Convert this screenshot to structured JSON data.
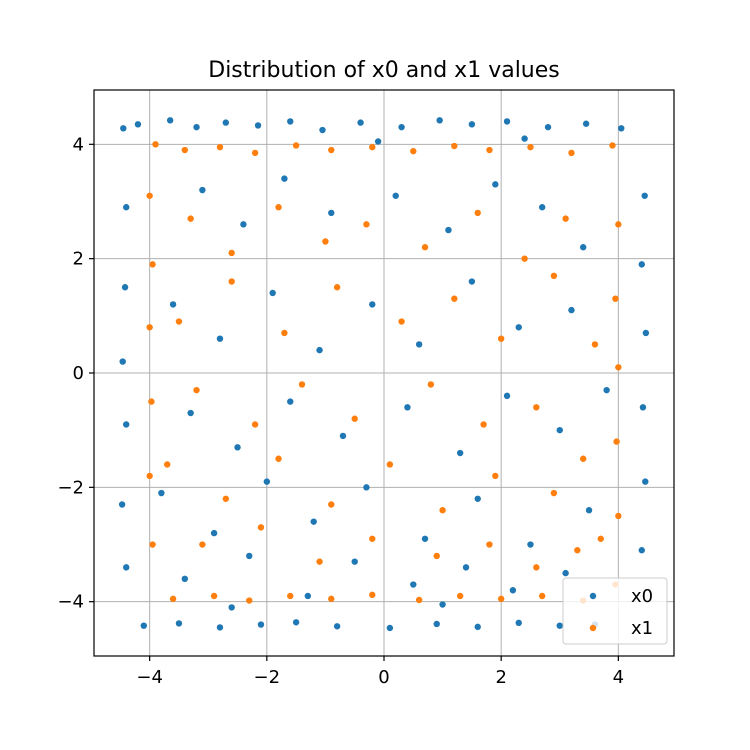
{
  "chart_data": {
    "type": "scatter",
    "title": "Distribution of x0 and x1 values",
    "xlabel": "",
    "ylabel": "",
    "xlim": [
      -4.95,
      4.95
    ],
    "ylim": [
      -4.95,
      4.95
    ],
    "xticks": [
      -4,
      -2,
      0,
      2,
      4
    ],
    "yticks": [
      -4,
      -2,
      0,
      2,
      4
    ],
    "xtick_labels": [
      "−4",
      "−2",
      "0",
      "2",
      "4"
    ],
    "ytick_labels": [
      "−4",
      "−2",
      "0",
      "2",
      "4"
    ],
    "grid": true,
    "legend_position": "bottom-right",
    "point_distribution": "approximately uniform over the square [-4.5, 4.5] x [-4.5, 4.5]",
    "series": [
      {
        "name": "x0",
        "color": "#1f77b4",
        "points": [
          [
            -4.45,
            4.28
          ],
          [
            -4.2,
            4.35
          ],
          [
            -3.65,
            4.42
          ],
          [
            -3.2,
            4.3
          ],
          [
            -2.7,
            4.38
          ],
          [
            -2.15,
            4.33
          ],
          [
            -1.6,
            4.4
          ],
          [
            -1.05,
            4.25
          ],
          [
            -0.4,
            4.38
          ],
          [
            0.3,
            4.3
          ],
          [
            0.95,
            4.42
          ],
          [
            1.5,
            4.35
          ],
          [
            2.1,
            4.4
          ],
          [
            2.8,
            4.3
          ],
          [
            3.45,
            4.36
          ],
          [
            4.05,
            4.28
          ],
          [
            -4.4,
            2.9
          ],
          [
            -4.42,
            1.5
          ],
          [
            -4.46,
            0.2
          ],
          [
            -4.4,
            -0.9
          ],
          [
            -4.47,
            -2.3
          ],
          [
            -4.4,
            -3.4
          ],
          [
            4.45,
            3.1
          ],
          [
            4.4,
            1.9
          ],
          [
            4.47,
            0.7
          ],
          [
            4.42,
            -0.6
          ],
          [
            4.46,
            -1.9
          ],
          [
            4.4,
            -3.1
          ],
          [
            -4.1,
            -4.42
          ],
          [
            -3.5,
            -4.38
          ],
          [
            -2.8,
            -4.45
          ],
          [
            -2.1,
            -4.4
          ],
          [
            -1.5,
            -4.36
          ],
          [
            -0.8,
            -4.43
          ],
          [
            0.1,
            -4.46
          ],
          [
            0.9,
            -4.39
          ],
          [
            1.6,
            -4.44
          ],
          [
            2.3,
            -4.37
          ],
          [
            3.0,
            -4.42
          ],
          [
            3.6,
            -4.4
          ],
          [
            -3.1,
            3.2
          ],
          [
            -2.4,
            2.6
          ],
          [
            -1.7,
            3.4
          ],
          [
            -0.9,
            2.8
          ],
          [
            0.2,
            3.1
          ],
          [
            1.1,
            2.5
          ],
          [
            1.9,
            3.3
          ],
          [
            2.7,
            2.9
          ],
          [
            3.4,
            2.2
          ],
          [
            -3.6,
            1.2
          ],
          [
            -2.8,
            0.6
          ],
          [
            -1.9,
            1.4
          ],
          [
            -1.1,
            0.4
          ],
          [
            -0.2,
            1.2
          ],
          [
            0.6,
            0.5
          ],
          [
            1.5,
            1.6
          ],
          [
            2.3,
            0.8
          ],
          [
            3.2,
            1.1
          ],
          [
            -3.3,
            -0.7
          ],
          [
            -2.5,
            -1.3
          ],
          [
            -1.6,
            -0.5
          ],
          [
            -0.7,
            -1.1
          ],
          [
            0.4,
            -0.6
          ],
          [
            1.3,
            -1.4
          ],
          [
            2.1,
            -0.4
          ],
          [
            3.0,
            -1.0
          ],
          [
            3.8,
            -0.3
          ],
          [
            -3.8,
            -2.1
          ],
          [
            -2.9,
            -2.8
          ],
          [
            -2.0,
            -1.9
          ],
          [
            -1.2,
            -2.6
          ],
          [
            -0.3,
            -2.0
          ],
          [
            0.7,
            -2.9
          ],
          [
            1.6,
            -2.2
          ],
          [
            2.5,
            -3.0
          ],
          [
            3.5,
            -2.4
          ],
          [
            -3.4,
            -3.6
          ],
          [
            -2.3,
            -3.2
          ],
          [
            -1.3,
            -3.9
          ],
          [
            -0.5,
            -3.3
          ],
          [
            0.5,
            -3.7
          ],
          [
            1.4,
            -3.4
          ],
          [
            2.2,
            -3.8
          ],
          [
            3.1,
            -3.5
          ],
          [
            -0.1,
            4.05
          ],
          [
            2.4,
            4.1
          ],
          [
            -2.6,
            -4.1
          ],
          [
            1.0,
            -4.05
          ]
        ]
      },
      {
        "name": "x1",
        "color": "#ff7f0e",
        "points": [
          [
            -3.9,
            4.0
          ],
          [
            -3.4,
            3.9
          ],
          [
            -2.8,
            3.95
          ],
          [
            -2.2,
            3.85
          ],
          [
            -1.5,
            3.98
          ],
          [
            -0.9,
            3.9
          ],
          [
            -0.2,
            3.95
          ],
          [
            0.5,
            3.88
          ],
          [
            1.2,
            3.97
          ],
          [
            1.8,
            3.9
          ],
          [
            2.5,
            3.95
          ],
          [
            3.2,
            3.85
          ],
          [
            3.9,
            3.98
          ],
          [
            -4.0,
            3.1
          ],
          [
            -3.95,
            1.9
          ],
          [
            -4.0,
            0.8
          ],
          [
            -3.97,
            -0.5
          ],
          [
            -4.0,
            -1.8
          ],
          [
            -3.95,
            -3.0
          ],
          [
            4.0,
            2.6
          ],
          [
            3.95,
            1.3
          ],
          [
            4.0,
            0.1
          ],
          [
            3.97,
            -1.2
          ],
          [
            4.0,
            -2.5
          ],
          [
            3.95,
            -3.7
          ],
          [
            -3.6,
            -3.95
          ],
          [
            -2.9,
            -3.9
          ],
          [
            -2.3,
            -3.98
          ],
          [
            -1.6,
            -3.9
          ],
          [
            -0.9,
            -3.95
          ],
          [
            -0.2,
            -3.88
          ],
          [
            0.6,
            -3.97
          ],
          [
            1.3,
            -3.9
          ],
          [
            2.0,
            -3.95
          ],
          [
            2.7,
            -3.9
          ],
          [
            3.4,
            -3.98
          ],
          [
            -3.3,
            2.7
          ],
          [
            -2.6,
            2.1
          ],
          [
            -1.8,
            2.9
          ],
          [
            -1.0,
            2.3
          ],
          [
            -0.3,
            2.6
          ],
          [
            0.7,
            2.2
          ],
          [
            1.6,
            2.8
          ],
          [
            2.4,
            2.0
          ],
          [
            3.1,
            2.7
          ],
          [
            -3.5,
            0.9
          ],
          [
            -2.6,
            1.6
          ],
          [
            -1.7,
            0.7
          ],
          [
            -0.8,
            1.5
          ],
          [
            0.3,
            0.9
          ],
          [
            1.2,
            1.3
          ],
          [
            2.0,
            0.6
          ],
          [
            2.9,
            1.7
          ],
          [
            3.6,
            0.5
          ],
          [
            -3.2,
            -0.3
          ],
          [
            -2.2,
            -0.9
          ],
          [
            -1.4,
            -0.2
          ],
          [
            -0.5,
            -0.8
          ],
          [
            0.8,
            -0.2
          ],
          [
            1.7,
            -0.9
          ],
          [
            2.6,
            -0.6
          ],
          [
            3.4,
            -1.5
          ],
          [
            -3.7,
            -1.6
          ],
          [
            -2.7,
            -2.2
          ],
          [
            -1.8,
            -1.5
          ],
          [
            -0.9,
            -2.3
          ],
          [
            0.1,
            -1.6
          ],
          [
            1.0,
            -2.4
          ],
          [
            1.9,
            -1.8
          ],
          [
            2.9,
            -2.1
          ],
          [
            3.7,
            -2.9
          ],
          [
            -3.1,
            -3.0
          ],
          [
            -2.1,
            -2.7
          ],
          [
            -1.1,
            -3.3
          ],
          [
            -0.2,
            -2.9
          ],
          [
            0.9,
            -3.2
          ],
          [
            1.8,
            -3.0
          ],
          [
            2.6,
            -3.4
          ],
          [
            3.3,
            -3.1
          ]
        ]
      }
    ]
  }
}
